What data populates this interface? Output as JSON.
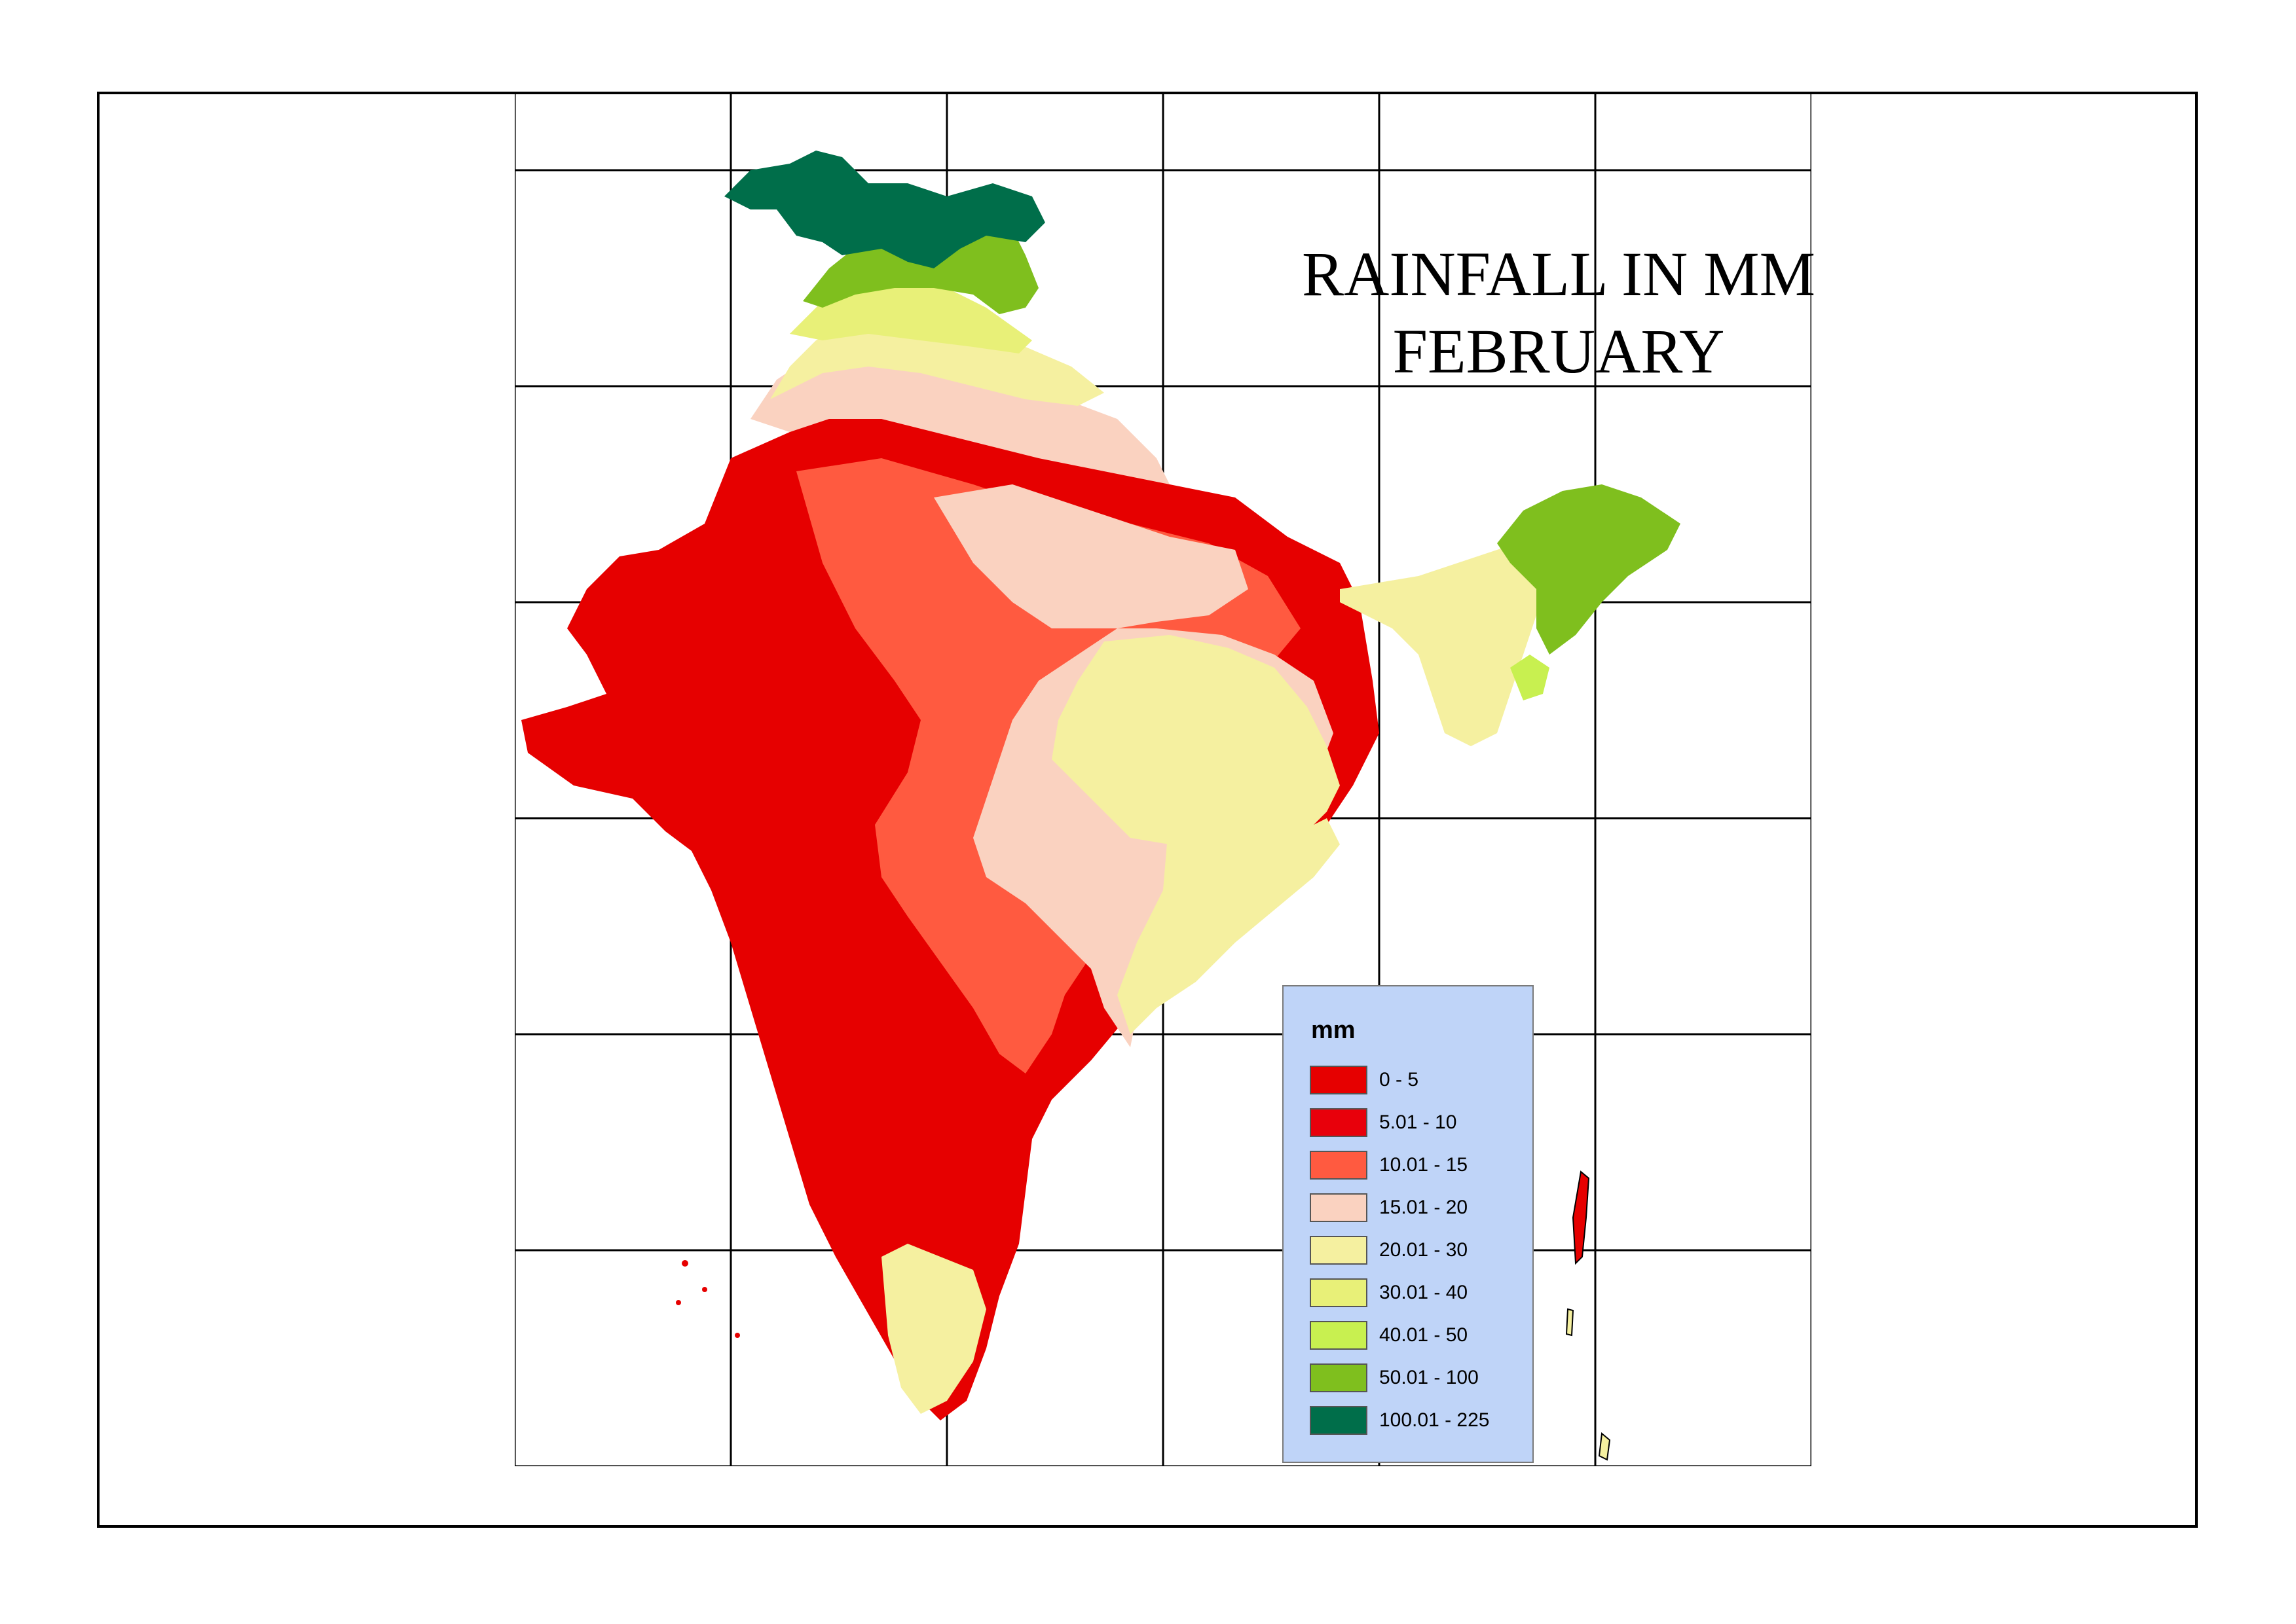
{
  "title": {
    "line1": "RAINFALL IN MM",
    "line2": "FEBRUARY"
  },
  "legend": {
    "title": "mm",
    "items": [
      {
        "label": "0 - 5",
        "color": "#e60000"
      },
      {
        "label": "5.01 - 10",
        "color": "#e8000b"
      },
      {
        "label": "10.01 - 15",
        "color": "#ff5a40"
      },
      {
        "label": "15.01 - 20",
        "color": "#fad2c0"
      },
      {
        "label": "20.01 - 30",
        "color": "#f5f0a0"
      },
      {
        "label": "30.01 - 40",
        "color": "#e8f078"
      },
      {
        "label": "40.01 - 50",
        "color": "#c8f050"
      },
      {
        "label": "50.01 - 100",
        "color": "#7fbf1e"
      },
      {
        "label": "100.01 - 225",
        "color": "#006e4a"
      }
    ]
  },
  "colors": {
    "frame": "#000000",
    "legend_background": "#bfd4f8",
    "grid_lines": "#000000"
  }
}
